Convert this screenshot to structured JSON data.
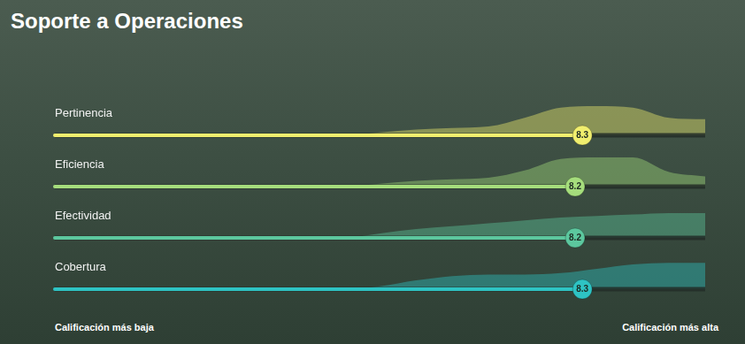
{
  "chart_data": {
    "type": "bar",
    "orientation": "horizontal",
    "title": "Soporte a Operaciones",
    "categories": [
      "Pertinencia",
      "Eficiencia",
      "Efectividad",
      "Cobertura"
    ],
    "values": [
      8.3,
      8.2,
      8.2,
      8.3
    ],
    "colors": [
      "#f0ee6e",
      "#a5dd7c",
      "#5cc79e",
      "#2ec3c3"
    ],
    "xlim": [
      1,
      10
    ],
    "tick_labels": false,
    "grid": false,
    "data_labels": true,
    "axis_end_labels": [
      "Calificación más baja",
      "Calificación más alta"
    ],
    "density_x": [
      1,
      2,
      3,
      4,
      5,
      5.5,
      6,
      6.5,
      7,
      7.5,
      8,
      8.5,
      9,
      9.5,
      10
    ],
    "density": [
      [
        0,
        0,
        0,
        0,
        0,
        0.1,
        0.2,
        0.25,
        0.3,
        0.6,
        0.95,
        1,
        0.95,
        0.6,
        0.55
      ],
      [
        0,
        0,
        0,
        0,
        0,
        0.1,
        0.2,
        0.25,
        0.3,
        0.55,
        0.95,
        1,
        1,
        0.5,
        0.35
      ],
      [
        0,
        0,
        0,
        0,
        0,
        0.15,
        0.3,
        0.4,
        0.5,
        0.6,
        0.7,
        0.75,
        0.8,
        0.85,
        0.85
      ],
      [
        0,
        0,
        0,
        0,
        0,
        0.1,
        0.3,
        0.45,
        0.5,
        0.5,
        0.55,
        0.7,
        0.85,
        0.9,
        0.9
      ]
    ],
    "density_lim": [
      0,
      1
    ]
  }
}
